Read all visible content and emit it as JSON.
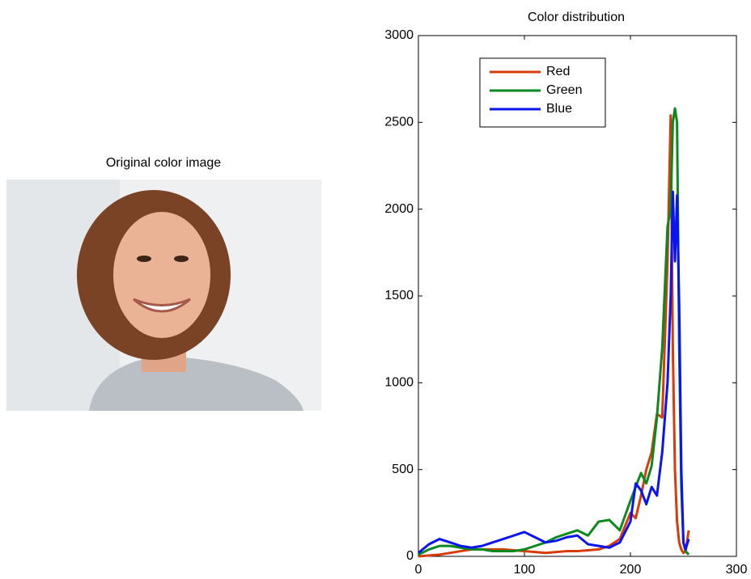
{
  "image_title": "Original color image",
  "chart_data": {
    "type": "line",
    "title": "Color distribution",
    "x": [
      0,
      10,
      20,
      30,
      40,
      50,
      60,
      70,
      80,
      90,
      100,
      110,
      120,
      130,
      140,
      150,
      160,
      170,
      180,
      190,
      200,
      205,
      210,
      215,
      220,
      225,
      230,
      235,
      238,
      240,
      242,
      244,
      246,
      248,
      250,
      252,
      255
    ],
    "series": [
      {
        "name": "Red",
        "color": "#d83b0a",
        "values": [
          0,
          5,
          10,
          20,
          30,
          40,
          40,
          40,
          40,
          35,
          30,
          25,
          20,
          25,
          30,
          30,
          35,
          40,
          60,
          100,
          250,
          220,
          350,
          500,
          600,
          820,
          800,
          1700,
          2540,
          1200,
          500,
          200,
          80,
          40,
          20,
          30,
          150
        ]
      },
      {
        "name": "Green",
        "color": "#0a8a1e",
        "values": [
          10,
          40,
          60,
          60,
          50,
          40,
          40,
          30,
          30,
          30,
          40,
          60,
          80,
          110,
          130,
          150,
          120,
          200,
          210,
          150,
          320,
          400,
          480,
          420,
          520,
          800,
          1200,
          1900,
          2000,
          2500,
          2580,
          2500,
          1200,
          400,
          80,
          30,
          10
        ]
      },
      {
        "name": "Blue",
        "color": "#0a14f0",
        "values": [
          20,
          70,
          100,
          80,
          60,
          50,
          60,
          80,
          100,
          120,
          140,
          110,
          80,
          90,
          110,
          120,
          70,
          60,
          50,
          80,
          200,
          420,
          380,
          300,
          400,
          350,
          600,
          1000,
          1500,
          2100,
          1700,
          2080,
          1450,
          500,
          80,
          40,
          100
        ]
      }
    ],
    "xlim": [
      0,
      300
    ],
    "xticks": [
      0,
      100,
      200,
      300
    ],
    "ylim": [
      0,
      3000
    ],
    "yticks": [
      0,
      500,
      1000,
      1500,
      2000,
      2500,
      3000
    ],
    "legend": "upper left"
  }
}
